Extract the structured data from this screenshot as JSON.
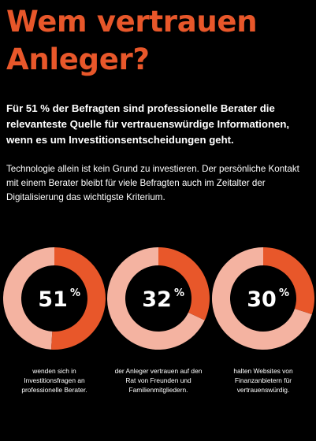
{
  "header": {
    "title": "Wem vertrauen Anleger?"
  },
  "intro": {
    "lead": "Für 51 % der Befragten sind professionelle Berater die relevanteste Quelle für vertrauenswürdige Informationen, wenn es um Investitionsentscheidungen geht.",
    "body": "Technologie allein ist kein Grund zu investieren. Der persönliche Kontakt mit einem Berater bleibt für viele Befragten auch im Zeitalter der Digitalisierung das wichtigste Kriterium."
  },
  "colors": {
    "accent": "#e8572a",
    "ring_rest": "#f4b3a1",
    "background": "#000000",
    "text": "#ffffff"
  },
  "chart_data": {
    "type": "pie",
    "style": "donut",
    "unit": "%",
    "items": [
      {
        "value": 51,
        "label": "51",
        "caption": "wenden sich in Investitionsfragen an professionelle Berater."
      },
      {
        "value": 32,
        "label": "32",
        "caption": "der Anleger vertrauen auf den Rat von Freunden und Familienmitgliedern."
      },
      {
        "value": 30,
        "label": "30",
        "caption": "halten Websites von Finanzanbietern für vertrauenswürdig."
      }
    ]
  }
}
